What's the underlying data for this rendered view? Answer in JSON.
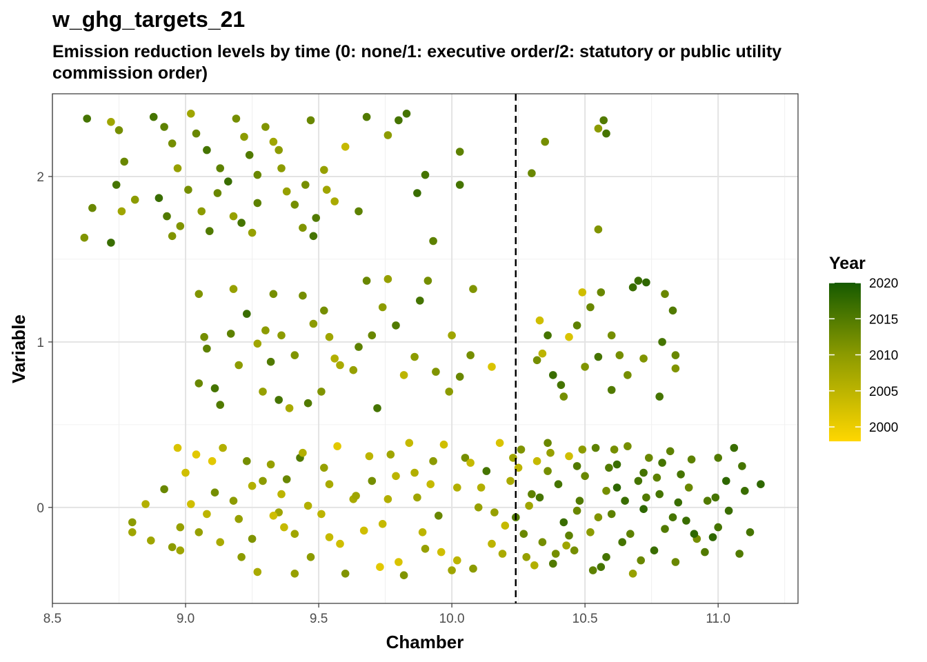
{
  "title": "w_ghg_targets_21",
  "subtitle": "Emission reduction levels by time (0: none/1: executive order/2: statutory or public utility commission order)",
  "chart_data": {
    "type": "scatter",
    "xlabel": "Chamber",
    "ylabel": "Variable",
    "xlim": [
      8.5,
      11.3
    ],
    "ylim": [
      -0.58,
      2.5
    ],
    "x_ticks": [
      "8.5",
      "9.0",
      "9.5",
      "10.0",
      "10.5",
      "11.0"
    ],
    "y_ticks": [
      "0",
      "1",
      "2"
    ],
    "x_tick_values": [
      8.5,
      9.0,
      9.5,
      10.0,
      10.5,
      11.0
    ],
    "y_tick_values": [
      0,
      1,
      2
    ],
    "vline": {
      "x": 10.24,
      "style": "dashed"
    },
    "grid": true,
    "legend": {
      "title": "Year",
      "type": "colorbar",
      "labels": [
        "2020",
        "2015",
        "2010",
        "2005",
        "2000"
      ],
      "label_values": [
        2020,
        2015,
        2010,
        2005,
        2000
      ],
      "range": [
        1998,
        2020
      ],
      "low_color": "#FFD700",
      "mid_color": "#8B9A00",
      "high_color": "#165A00",
      "position": "right"
    },
    "points": [
      [
        8.63,
        2.35,
        2016
      ],
      [
        8.72,
        2.33,
        2008
      ],
      [
        8.75,
        2.28,
        2012
      ],
      [
        8.77,
        2.09,
        2013
      ],
      [
        8.74,
        1.95,
        2016
      ],
      [
        8.81,
        1.86,
        2010
      ],
      [
        8.76,
        1.79,
        2008
      ],
      [
        8.72,
        1.6,
        2017
      ],
      [
        8.62,
        1.63,
        2011
      ],
      [
        8.65,
        1.81,
        2013
      ],
      [
        8.88,
        2.36,
        2016
      ],
      [
        8.92,
        2.3,
        2014
      ],
      [
        8.95,
        2.2,
        2012
      ],
      [
        8.97,
        2.05,
        2009
      ],
      [
        8.9,
        1.87,
        2017
      ],
      [
        8.93,
        1.76,
        2015
      ],
      [
        8.98,
        1.7,
        2011
      ],
      [
        9.02,
        2.38,
        2008
      ],
      [
        9.04,
        2.26,
        2013
      ],
      [
        9.08,
        2.16,
        2016
      ],
      [
        9.01,
        1.92,
        2012
      ],
      [
        9.06,
        1.79,
        2010
      ],
      [
        9.09,
        1.67,
        2015
      ],
      [
        9.13,
        2.05,
        2014
      ],
      [
        9.16,
        1.97,
        2017
      ],
      [
        9.19,
        2.35,
        2012
      ],
      [
        9.22,
        2.24,
        2010
      ],
      [
        9.24,
        2.13,
        2015
      ],
      [
        9.27,
        2.01,
        2013
      ],
      [
        9.21,
        1.72,
        2016
      ],
      [
        9.25,
        1.66,
        2009
      ],
      [
        9.3,
        2.3,
        2011
      ],
      [
        9.33,
        2.21,
        2008
      ],
      [
        9.35,
        2.16,
        2010
      ],
      [
        9.38,
        1.91,
        2009
      ],
      [
        9.41,
        1.83,
        2012
      ],
      [
        9.44,
        1.69,
        2011
      ],
      [
        9.47,
        2.34,
        2013
      ],
      [
        9.52,
        2.04,
        2009
      ],
      [
        9.53,
        1.92,
        2008
      ],
      [
        9.56,
        1.85,
        2007
      ],
      [
        9.49,
        1.75,
        2015
      ],
      [
        9.48,
        1.64,
        2016
      ],
      [
        9.6,
        2.18,
        2004
      ],
      [
        9.65,
        1.79,
        2014
      ],
      [
        9.68,
        2.36,
        2015
      ],
      [
        9.76,
        2.25,
        2010
      ],
      [
        9.8,
        2.34,
        2016
      ],
      [
        9.83,
        2.38,
        2016
      ],
      [
        9.87,
        1.9,
        2017
      ],
      [
        9.9,
        2.01,
        2016
      ],
      [
        9.93,
        1.61,
        2014
      ],
      [
        10.03,
        2.15,
        2014
      ],
      [
        10.03,
        1.95,
        2016
      ],
      [
        10.3,
        2.02,
        2013
      ],
      [
        10.35,
        2.21,
        2012
      ],
      [
        10.55,
        2.29,
        2010
      ],
      [
        10.57,
        2.34,
        2015
      ],
      [
        10.58,
        2.26,
        2016
      ],
      [
        10.55,
        1.68,
        2011
      ],
      [
        9.36,
        2.05,
        2010
      ],
      [
        9.12,
        1.9,
        2013
      ],
      [
        9.27,
        1.84,
        2014
      ],
      [
        8.95,
        1.64,
        2011
      ],
      [
        9.45,
        1.95,
        2012
      ],
      [
        9.18,
        1.76,
        2009
      ],
      [
        9.05,
        1.29,
        2011
      ],
      [
        9.07,
        1.03,
        2012
      ],
      [
        9.08,
        0.96,
        2014
      ],
      [
        9.05,
        0.75,
        2013
      ],
      [
        9.11,
        0.72,
        2016
      ],
      [
        9.13,
        0.62,
        2015
      ],
      [
        9.18,
        1.32,
        2009
      ],
      [
        9.17,
        1.05,
        2014
      ],
      [
        9.2,
        0.86,
        2010
      ],
      [
        9.23,
        1.17,
        2017
      ],
      [
        9.27,
        0.99,
        2008
      ],
      [
        9.29,
        0.7,
        2009
      ],
      [
        9.32,
        0.88,
        2015
      ],
      [
        9.33,
        1.29,
        2012
      ],
      [
        9.36,
        1.04,
        2010
      ],
      [
        9.35,
        0.65,
        2016
      ],
      [
        9.41,
        0.92,
        2011
      ],
      [
        9.44,
        1.28,
        2012
      ],
      [
        9.48,
        1.11,
        2010
      ],
      [
        9.51,
        0.7,
        2011
      ],
      [
        9.52,
        1.19,
        2012
      ],
      [
        9.54,
        1.03,
        2008
      ],
      [
        9.56,
        0.9,
        2006
      ],
      [
        9.63,
        0.83,
        2009
      ],
      [
        9.65,
        0.97,
        2014
      ],
      [
        9.68,
        1.37,
        2013
      ],
      [
        9.72,
        0.6,
        2016
      ],
      [
        9.74,
        1.21,
        2010
      ],
      [
        9.76,
        1.38,
        2009
      ],
      [
        9.79,
        1.1,
        2015
      ],
      [
        9.82,
        0.8,
        2005
      ],
      [
        9.86,
        0.91,
        2010
      ],
      [
        9.91,
        1.37,
        2012
      ],
      [
        9.94,
        0.82,
        2011
      ],
      [
        9.99,
        0.7,
        2010
      ],
      [
        10.03,
        0.79,
        2013
      ],
      [
        10.07,
        0.92,
        2012
      ],
      [
        10.08,
        1.32,
        2011
      ],
      [
        10.15,
        0.85,
        2002
      ],
      [
        10.33,
        1.13,
        2003
      ],
      [
        10.34,
        0.93,
        2005
      ],
      [
        10.36,
        1.04,
        2016
      ],
      [
        10.42,
        0.67,
        2012
      ],
      [
        10.44,
        1.03,
        2002
      ],
      [
        10.49,
        1.3,
        2003
      ],
      [
        10.52,
        1.21,
        2013
      ],
      [
        10.55,
        0.91,
        2016
      ],
      [
        10.6,
        0.71,
        2015
      ],
      [
        10.63,
        0.92,
        2012
      ],
      [
        10.68,
        1.33,
        2017
      ],
      [
        10.7,
        1.37,
        2017
      ],
      [
        10.73,
        1.36,
        2018
      ],
      [
        10.78,
        0.67,
        2016
      ],
      [
        10.8,
        1.29,
        2013
      ],
      [
        10.83,
        1.19,
        2015
      ],
      [
        10.84,
        0.92,
        2013
      ],
      [
        10.84,
        0.84,
        2011
      ],
      [
        10.79,
        1.0,
        2016
      ],
      [
        10.72,
        0.9,
        2011
      ],
      [
        10.6,
        1.04,
        2012
      ],
      [
        10.5,
        0.85,
        2011
      ],
      [
        10.47,
        1.1,
        2014
      ],
      [
        10.41,
        0.74,
        2016
      ],
      [
        10.38,
        0.8,
        2017
      ],
      [
        10.32,
        0.89,
        2012
      ],
      [
        10.56,
        1.3,
        2013
      ],
      [
        10.66,
        0.8,
        2012
      ],
      [
        9.46,
        0.63,
        2015
      ],
      [
        9.58,
        0.86,
        2007
      ],
      [
        9.3,
        1.07,
        2010
      ],
      [
        9.39,
        0.6,
        2007
      ],
      [
        9.7,
        1.04,
        2013
      ],
      [
        9.88,
        1.25,
        2016
      ],
      [
        10.0,
        1.04,
        2008
      ],
      [
        8.8,
        -0.09,
        2010
      ],
      [
        8.8,
        -0.15,
        2008
      ],
      [
        8.87,
        -0.2,
        2008
      ],
      [
        8.92,
        0.11,
        2013
      ],
      [
        8.95,
        -0.24,
        2010
      ],
      [
        8.97,
        0.36,
        2002
      ],
      [
        8.98,
        -0.12,
        2009
      ],
      [
        9.02,
        0.02,
        2003
      ],
      [
        9.04,
        0.32,
        2001
      ],
      [
        9.05,
        -0.15,
        2009
      ],
      [
        9.1,
        0.28,
        2001
      ],
      [
        9.11,
        0.09,
        2012
      ],
      [
        9.18,
        0.04,
        2010
      ],
      [
        9.21,
        -0.3,
        2010
      ],
      [
        9.23,
        0.28,
        2012
      ],
      [
        9.27,
        -0.39,
        2007
      ],
      [
        9.29,
        0.16,
        2010
      ],
      [
        9.32,
        0.26,
        2009
      ],
      [
        9.35,
        -0.03,
        2008
      ],
      [
        9.38,
        0.17,
        2013
      ],
      [
        9.41,
        -0.4,
        2009
      ],
      [
        9.43,
        0.3,
        2015
      ],
      [
        9.46,
        0.01,
        2006
      ],
      [
        9.47,
        -0.3,
        2010
      ],
      [
        9.52,
        0.24,
        2009
      ],
      [
        9.54,
        -0.18,
        2004
      ],
      [
        9.57,
        0.37,
        2001
      ],
      [
        9.6,
        -0.4,
        2011
      ],
      [
        9.63,
        0.05,
        2007
      ],
      [
        9.67,
        -0.14,
        2003
      ],
      [
        9.7,
        0.16,
        2012
      ],
      [
        9.73,
        -0.36,
        2001
      ],
      [
        9.77,
        0.32,
        2008
      ],
      [
        9.79,
        0.19,
        2005
      ],
      [
        9.82,
        -0.41,
        2011
      ],
      [
        9.84,
        0.39,
        2004
      ],
      [
        9.87,
        0.06,
        2008
      ],
      [
        9.9,
        -0.25,
        2009
      ],
      [
        9.93,
        0.28,
        2010
      ],
      [
        9.95,
        -0.05,
        2013
      ],
      [
        9.97,
        0.38,
        2003
      ],
      [
        10.0,
        -0.38,
        2008
      ],
      [
        10.02,
        0.12,
        2006
      ],
      [
        10.05,
        0.3,
        2012
      ],
      [
        10.08,
        -0.37,
        2010
      ],
      [
        10.1,
        0.0,
        2009
      ],
      [
        10.13,
        0.22,
        2016
      ],
      [
        10.15,
        -0.22,
        2005
      ],
      [
        10.18,
        0.39,
        2002
      ],
      [
        10.2,
        -0.11,
        2004
      ],
      [
        10.22,
        0.16,
        2007
      ],
      [
        10.24,
        -0.06,
        2015
      ],
      [
        10.26,
        0.35,
        2011
      ],
      [
        10.28,
        -0.3,
        2009
      ],
      [
        10.3,
        0.08,
        2014
      ],
      [
        10.32,
        0.28,
        2004
      ],
      [
        10.34,
        -0.21,
        2012
      ],
      [
        10.36,
        0.39,
        2013
      ],
      [
        10.38,
        -0.34,
        2015
      ],
      [
        10.4,
        0.14,
        2016
      ],
      [
        10.42,
        -0.09,
        2017
      ],
      [
        10.44,
        0.31,
        2003
      ],
      [
        10.46,
        -0.26,
        2012
      ],
      [
        10.48,
        0.04,
        2015
      ],
      [
        10.5,
        0.19,
        2013
      ],
      [
        10.52,
        -0.15,
        2010
      ],
      [
        10.54,
        0.36,
        2014
      ],
      [
        10.56,
        -0.36,
        2016
      ],
      [
        10.58,
        0.1,
        2012
      ],
      [
        10.6,
        -0.04,
        2014
      ],
      [
        10.62,
        0.26,
        2017
      ],
      [
        10.64,
        -0.21,
        2016
      ],
      [
        10.66,
        0.37,
        2012
      ],
      [
        10.68,
        -0.4,
        2009
      ],
      [
        10.7,
        0.16,
        2016
      ],
      [
        10.72,
        -0.01,
        2018
      ],
      [
        10.74,
        0.3,
        2013
      ],
      [
        10.76,
        -0.26,
        2017
      ],
      [
        10.78,
        0.08,
        2016
      ],
      [
        10.8,
        -0.13,
        2015
      ],
      [
        10.82,
        0.34,
        2014
      ],
      [
        10.84,
        -0.33,
        2013
      ],
      [
        10.86,
        0.2,
        2016
      ],
      [
        10.88,
        -0.08,
        2017
      ],
      [
        10.9,
        0.29,
        2014
      ],
      [
        10.92,
        -0.19,
        2012
      ],
      [
        10.96,
        0.04,
        2015
      ],
      [
        11.0,
        -0.12,
        2016
      ],
      [
        11.03,
        0.16,
        2018
      ],
      [
        11.06,
        0.36,
        2017
      ],
      [
        11.08,
        -0.28,
        2015
      ],
      [
        11.1,
        0.1,
        2017
      ],
      [
        11.12,
        -0.15,
        2016
      ],
      [
        11.16,
        0.14,
        2018
      ],
      [
        11.09,
        0.25,
        2016
      ],
      [
        11.0,
        0.3,
        2015
      ],
      [
        10.47,
        0.25,
        2015
      ],
      [
        10.36,
        0.22,
        2012
      ],
      [
        10.62,
        0.12,
        2018
      ],
      [
        10.72,
        0.21,
        2016
      ],
      [
        10.58,
        -0.3,
        2016
      ],
      [
        10.44,
        -0.17,
        2014
      ],
      [
        10.29,
        0.01,
        2008
      ],
      [
        10.19,
        -0.28,
        2007
      ],
      [
        10.07,
        0.27,
        2004
      ],
      [
        9.96,
        -0.27,
        2003
      ],
      [
        9.86,
        0.21,
        2006
      ],
      [
        9.74,
        -0.1,
        2004
      ],
      [
        9.64,
        0.07,
        2008
      ],
      [
        9.51,
        -0.04,
        2005
      ],
      [
        9.37,
        -0.12,
        2004
      ],
      [
        9.25,
        0.13,
        2006
      ],
      [
        9.13,
        -0.21,
        2007
      ],
      [
        9.0,
        0.21,
        2003
      ],
      [
        8.85,
        0.02,
        2006
      ],
      [
        10.27,
        -0.16,
        2013
      ],
      [
        10.33,
        0.06,
        2016
      ],
      [
        10.39,
        -0.28,
        2012
      ],
      [
        10.47,
        -0.02,
        2013
      ],
      [
        10.53,
        -0.38,
        2014
      ],
      [
        10.59,
        0.24,
        2015
      ],
      [
        10.65,
        0.04,
        2017
      ],
      [
        10.71,
        -0.32,
        2013
      ],
      [
        10.77,
        0.18,
        2014
      ],
      [
        10.83,
        -0.06,
        2016
      ],
      [
        10.89,
        0.12,
        2013
      ],
      [
        10.95,
        -0.27,
        2015
      ],
      [
        10.25,
        0.24,
        2005
      ],
      [
        10.31,
        -0.35,
        2006
      ],
      [
        10.37,
        0.33,
        2009
      ],
      [
        10.43,
        -0.23,
        2008
      ],
      [
        10.49,
        0.35,
        2010
      ],
      [
        10.55,
        -0.06,
        2011
      ],
      [
        10.61,
        0.35,
        2012
      ],
      [
        10.67,
        -0.16,
        2014
      ],
      [
        10.73,
        0.06,
        2015
      ],
      [
        10.79,
        0.27,
        2016
      ],
      [
        10.85,
        0.03,
        2017
      ],
      [
        10.91,
        -0.16,
        2018
      ],
      [
        10.98,
        -0.18,
        2018
      ],
      [
        11.04,
        -0.02,
        2017
      ],
      [
        10.99,
        0.06,
        2016
      ],
      [
        10.02,
        -0.32,
        2005
      ],
      [
        9.92,
        0.14,
        2004
      ],
      [
        9.8,
        -0.33,
        2002
      ],
      [
        9.69,
        0.31,
        2005
      ],
      [
        9.58,
        -0.22,
        2003
      ],
      [
        9.44,
        0.33,
        2006
      ],
      [
        9.33,
        -0.05,
        2003
      ],
      [
        9.2,
        -0.07,
        2009
      ],
      [
        9.08,
        -0.04,
        2005
      ],
      [
        8.98,
        -0.26,
        2008
      ],
      [
        10.11,
        0.12,
        2006
      ],
      [
        10.16,
        -0.03,
        2009
      ],
      [
        10.23,
        0.3,
        2008
      ],
      [
        9.76,
        0.05,
        2006
      ],
      [
        9.89,
        -0.15,
        2005
      ],
      [
        9.54,
        0.14,
        2007
      ],
      [
        9.36,
        0.08,
        2005
      ],
      [
        9.41,
        -0.16,
        2008
      ],
      [
        9.25,
        -0.19,
        2011
      ],
      [
        9.14,
        0.36,
        2006
      ]
    ]
  }
}
